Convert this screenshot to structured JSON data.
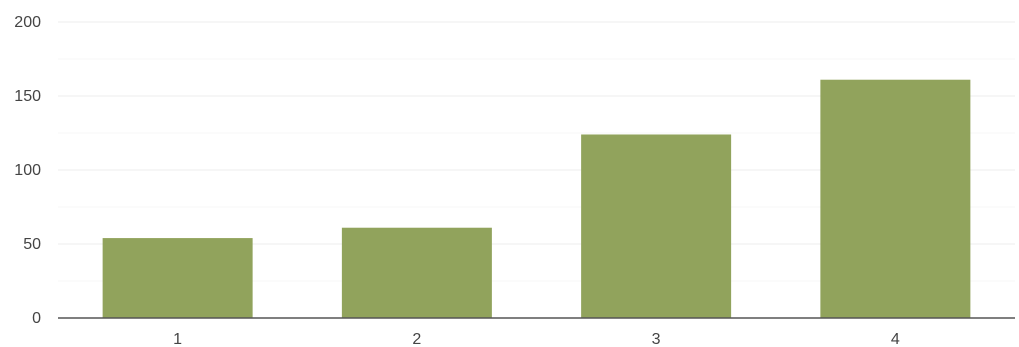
{
  "chart_data": {
    "type": "bar",
    "title": "",
    "xlabel": "",
    "ylabel": "",
    "categories": [
      "1",
      "2",
      "3",
      "4"
    ],
    "values": [
      54,
      61,
      124,
      161
    ],
    "ylim": [
      0,
      200
    ],
    "yticks": [
      0,
      50,
      100,
      150,
      200
    ],
    "grid": true,
    "minor_grid": true,
    "legend": "none",
    "bar_color": "#91a35c",
    "major_grid_color": "#eeeeee",
    "minor_grid_color": "#f7f7f7",
    "axis_color": "#555555"
  }
}
